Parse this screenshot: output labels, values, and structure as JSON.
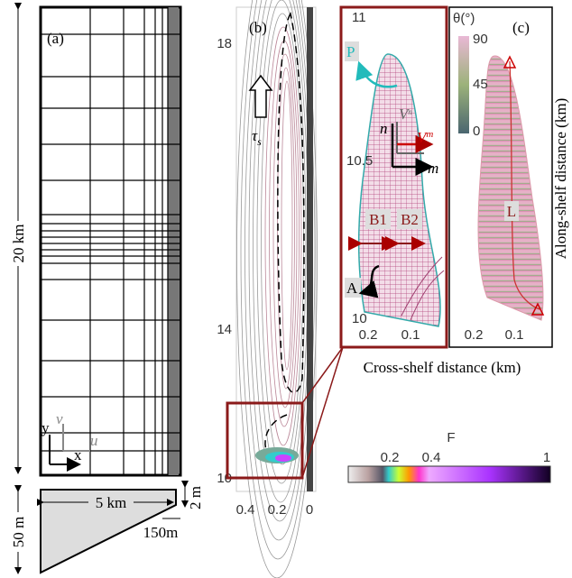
{
  "panel_a": {
    "label": "(a)",
    "length_label": "20 km",
    "axes": {
      "y": "y",
      "v": "v",
      "x": "x",
      "u": "u"
    },
    "section": {
      "width_label": "5 km",
      "depth_label": "50 m",
      "shelf_depth_label": "2 m",
      "shelf_width_label": "150m"
    }
  },
  "panel_b": {
    "label": "(b)",
    "wind": {
      "symbol": "τ",
      "subscript": "s"
    },
    "yticks": [
      "18",
      "14",
      "10"
    ],
    "xticks": [
      "0.4",
      "0.2",
      "0"
    ]
  },
  "inset": {
    "yticks": [
      "11",
      "10.5",
      "10"
    ],
    "xticks": [
      "0.2",
      "0.1"
    ],
    "point_label": "P",
    "n_label": "n",
    "m_label": "m",
    "n_velocity": {
      "symbol": "V",
      "sup": "n"
    },
    "m_velocity": {
      "symbol": "V",
      "sup": "m"
    },
    "b1": "B1",
    "b2": "B2",
    "a_label": "A"
  },
  "panel_c": {
    "label": "(c)",
    "colorbar_title": "θ(°)",
    "colorbar_ticks": [
      "90",
      "45",
      "0"
    ],
    "line_label": "L",
    "xticks": [
      "0.2",
      "0.1"
    ]
  },
  "axis_titles": {
    "x": "Cross-shelf distance (km)",
    "y": "Along-shelf distance (km)"
  },
  "f_colorbar": {
    "title": "F",
    "ticks": [
      "0.2",
      "0.4",
      "1"
    ]
  }
}
